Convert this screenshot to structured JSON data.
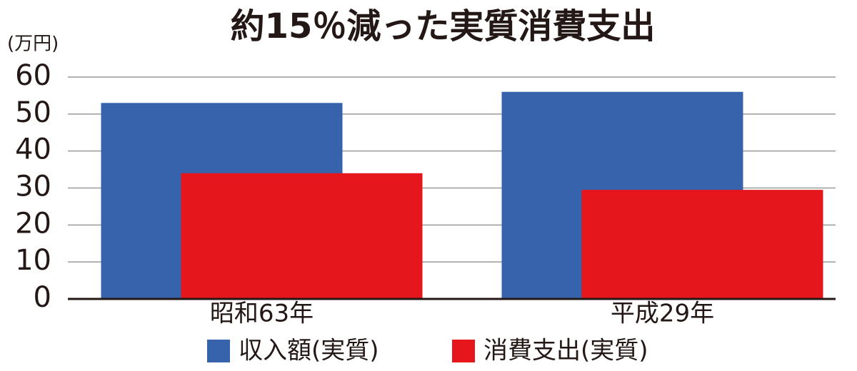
{
  "chart_data": {
    "type": "bar",
    "title": "約15％減った実質消費支出",
    "y_axis_label": "(万円)",
    "categories": [
      "昭和63年",
      "平成29年"
    ],
    "series": [
      {
        "name": "収入額(実質)",
        "color": "#3763ad",
        "values": [
          53,
          56
        ]
      },
      {
        "name": "消費支出(実質)",
        "color": "#e5161c",
        "values": [
          34,
          29.5
        ]
      }
    ],
    "ylim": [
      0,
      60
    ],
    "yticks": [
      0,
      10,
      20,
      30,
      40,
      50,
      60
    ],
    "grid": true,
    "legend": "bottom"
  }
}
